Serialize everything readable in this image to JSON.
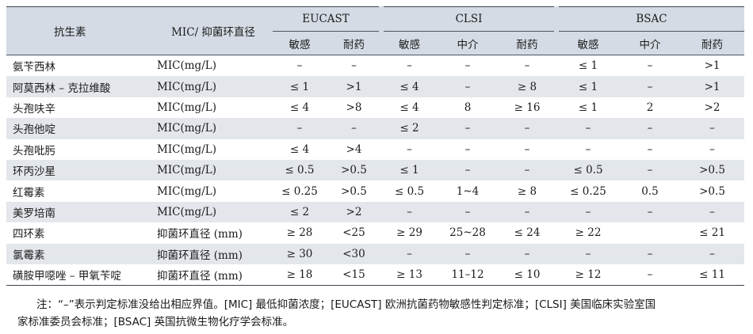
{
  "header": {
    "col_antibiotic": "抗生素",
    "col_mic": "MIC/ 抑菌环直径",
    "groups": [
      "EUCAST",
      "CLSI",
      "BSAC"
    ],
    "sub": {
      "sensitive": "敏感",
      "intermediate": "中介",
      "resistant": "耐药"
    }
  },
  "rows": [
    {
      "name": "氨苄西林",
      "unit": "MIC(mg/L)",
      "v": [
        "–",
        "–",
        "–",
        "–",
        "–",
        "≤ 1",
        "–",
        ">1"
      ]
    },
    {
      "name": "阿莫西林 – 克拉维酸",
      "unit": "MIC(mg/L)",
      "v": [
        "≤ 1",
        ">1",
        "≤ 4",
        "–",
        "≥ 8",
        "≤ 1",
        "–",
        ">1"
      ]
    },
    {
      "name": "头孢呋辛",
      "unit": "MIC(mg/L)",
      "v": [
        "≤ 4",
        ">8",
        "≤ 4",
        "8",
        "≥ 16",
        "≤ 1",
        "2",
        ">2"
      ]
    },
    {
      "name": "头孢他啶",
      "unit": "MIC(mg/L)",
      "v": [
        "–",
        "–",
        "≤ 2",
        "–",
        "–",
        "–",
        "–",
        "–"
      ]
    },
    {
      "name": "头孢吡肟",
      "unit": "MIC(mg/L)",
      "v": [
        "≤ 4",
        ">4",
        "–",
        "–",
        "–",
        "–",
        "–",
        "–"
      ]
    },
    {
      "name": "环丙沙星",
      "unit": "MIC(mg/L)",
      "v": [
        "≤ 0.5",
        ">0.5",
        "≤ 1",
        "–",
        "–",
        "≤ 0.5",
        "–",
        ">0.5"
      ]
    },
    {
      "name": "红霉素",
      "unit": "MIC(mg/L)",
      "v": [
        "≤ 0.25",
        ">0.5",
        "≤ 0.5",
        "1~4",
        "≥ 8",
        "≤ 0.25",
        "0.5",
        ">0.5"
      ]
    },
    {
      "name": "美罗培南",
      "unit": "MIC(mg/L)",
      "v": [
        "≤ 2",
        ">2",
        "–",
        "–",
        "–",
        "–",
        "–",
        "–"
      ]
    },
    {
      "name": "四环素",
      "unit": "抑菌环直径 (mm)",
      "v": [
        "≥ 28",
        "<25",
        "≥ 29",
        "25~28",
        "≤ 24",
        "≥ 22",
        "",
        "≤ 21"
      ]
    },
    {
      "name": "氯霉素",
      "unit": "抑菌环直径 (mm)",
      "v": [
        "≥ 30",
        "<30",
        "–",
        "–",
        "–",
        "–",
        "–",
        "–"
      ]
    },
    {
      "name": "磺胺甲噁唑 – 甲氧苄啶",
      "unit": "抑菌环直径 (mm)",
      "v": [
        "≥ 18",
        "<15",
        "≥ 13",
        "11–12",
        "≤ 10",
        "≥ 12",
        "–",
        "≤ 11"
      ]
    }
  ],
  "note": {
    "line1": "注：“–”表示判定标准没给出相应界值。[MIC] 最低抑菌浓度；[EUCAST] 欧洲抗菌药物敏感性判定标准；[CLSI] 美国临床实验室国",
    "line2": "家标准委员会标准；[BSAC] 英国抗微生物化疗学会标准。"
  },
  "colors": {
    "header_bg": "#d4dbe4",
    "stripe_bg": "#e3e7ec",
    "rule": "#3a434d"
  }
}
